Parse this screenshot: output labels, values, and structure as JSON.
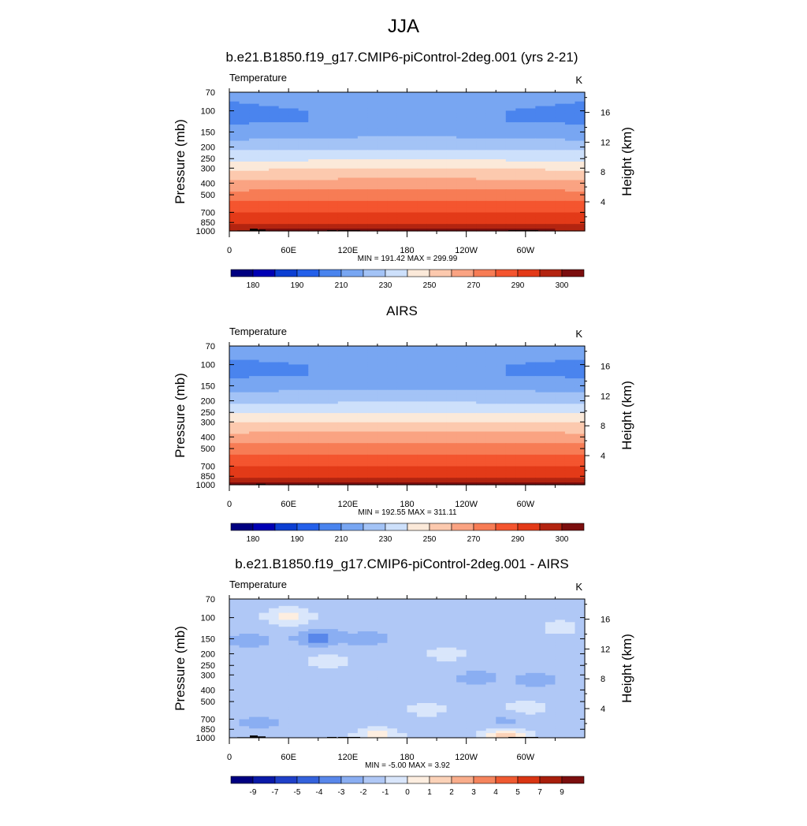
{
  "figure_title": "JJA",
  "colors": {
    "model_palette": [
      "#000080",
      "#0000b4",
      "#0c3fd2",
      "#2460ea",
      "#4a84ee",
      "#78a6f2",
      "#a3c3f6",
      "#cde0fb",
      "#fbe9d9",
      "#fcc9ae",
      "#faa382",
      "#f77c55",
      "#f4552f",
      "#e33a18",
      "#b32410",
      "#7b0e0e"
    ],
    "diff_palette": [
      "#000080",
      "#0a1aa8",
      "#1f40c8",
      "#3462dc",
      "#5987ea",
      "#8aaef2",
      "#b0c8f6",
      "#d9e6fb",
      "#fdeee0",
      "#fbd2b8",
      "#f9ad8b",
      "#f5845d",
      "#ef5a31",
      "#d93513",
      "#a81e0c",
      "#7b0e0e"
    ]
  },
  "chart_data": [
    {
      "type": "heatmap",
      "panel_title": "b.e21.B1850.f19_g17.CMIP6-piControl-2deg.001 (yrs 2-21)",
      "left_label": "Temperature",
      "units": "K",
      "ylabel": "Pressure (mb)",
      "ylabel_right": "Height (km)",
      "x_ticks": [
        "0",
        "60E",
        "120E",
        "180",
        "120W",
        "60W"
      ],
      "y_ticks": [
        "70",
        "100",
        "150",
        "200",
        "250",
        "300",
        "400",
        "500",
        "700",
        "850",
        "1000"
      ],
      "y_ticks_right": [
        "16",
        "12",
        "8",
        "4"
      ],
      "stats": "MIN = 191.42  MAX = 299.99",
      "colorbar_labels": [
        "180",
        "190",
        "210",
        "230",
        "250",
        "270",
        "290",
        "300"
      ],
      "colorbar_levels": [
        175,
        180,
        185,
        190,
        200,
        210,
        220,
        230,
        240,
        250,
        260,
        270,
        280,
        290,
        295,
        300
      ],
      "profile": [
        {
          "p": 70,
          "value": 201
        },
        {
          "p": 100,
          "value": 199
        },
        {
          "p": 125,
          "value": 199
        },
        {
          "p": 150,
          "value": 206
        },
        {
          "p": 175,
          "value": 210
        },
        {
          "p": 200,
          "value": 216
        },
        {
          "p": 250,
          "value": 227
        },
        {
          "p": 300,
          "value": 238
        },
        {
          "p": 400,
          "value": 253
        },
        {
          "p": 500,
          "value": 264
        },
        {
          "p": 600,
          "value": 272
        },
        {
          "p": 700,
          "value": 279
        },
        {
          "p": 850,
          "value": 287
        },
        {
          "p": 925,
          "value": 292
        },
        {
          "p": 1000,
          "value": 296
        }
      ]
    },
    {
      "type": "heatmap",
      "panel_title": "AIRS",
      "left_label": "Temperature",
      "units": "K",
      "ylabel": "Pressure (mb)",
      "ylabel_right": "Height (km)",
      "x_ticks": [
        "0",
        "60E",
        "120E",
        "180",
        "120W",
        "60W"
      ],
      "y_ticks": [
        "70",
        "100",
        "150",
        "200",
        "250",
        "300",
        "400",
        "500",
        "700",
        "850",
        "1000"
      ],
      "y_ticks_right": [
        "16",
        "12",
        "8",
        "4"
      ],
      "stats": "MIN = 192.55  MAX = 311.11",
      "colorbar_labels": [
        "180",
        "190",
        "210",
        "230",
        "250",
        "270",
        "290",
        "300"
      ],
      "colorbar_levels": [
        175,
        180,
        185,
        190,
        200,
        210,
        220,
        230,
        240,
        250,
        260,
        270,
        280,
        290,
        295,
        300
      ],
      "profile": [
        {
          "p": 70,
          "value": 202
        },
        {
          "p": 100,
          "value": 199
        },
        {
          "p": 125,
          "value": 199
        },
        {
          "p": 150,
          "value": 206
        },
        {
          "p": 175,
          "value": 211
        },
        {
          "p": 200,
          "value": 217
        },
        {
          "p": 250,
          "value": 228
        },
        {
          "p": 300,
          "value": 239
        },
        {
          "p": 400,
          "value": 254
        },
        {
          "p": 500,
          "value": 265
        },
        {
          "p": 600,
          "value": 273
        },
        {
          "p": 700,
          "value": 280
        },
        {
          "p": 850,
          "value": 288
        },
        {
          "p": 925,
          "value": 293
        },
        {
          "p": 1000,
          "value": 297
        }
      ]
    },
    {
      "type": "heatmap",
      "panel_title": "b.e21.B1850.f19_g17.CMIP6-piControl-2deg.001 - AIRS",
      "left_label": "Temperature",
      "units": "K",
      "ylabel": "Pressure (mb)",
      "ylabel_right": "Height (km)",
      "x_ticks": [
        "0",
        "60E",
        "120E",
        "180",
        "120W",
        "60W"
      ],
      "y_ticks": [
        "70",
        "100",
        "150",
        "200",
        "250",
        "300",
        "400",
        "500",
        "700",
        "850",
        "1000"
      ],
      "y_ticks_right": [
        "16",
        "12",
        "8",
        "4"
      ],
      "stats": "MIN =  -5.00  MAX =   3.92",
      "colorbar_labels": [
        "-9",
        "-7",
        "-5",
        "-4",
        "-3",
        "-2",
        "-1",
        "0",
        "1",
        "2",
        "3",
        "4",
        "5",
        "7",
        "9"
      ],
      "colorbar_levels": [
        -9,
        -7,
        -5,
        -4,
        -3,
        -2,
        -1,
        0,
        1,
        2,
        3,
        4,
        5,
        7,
        9
      ],
      "background_value": -1.5,
      "anomalies": [
        {
          "lon": 60,
          "p": 98,
          "value": 0.5
        },
        {
          "lon": 90,
          "p": 148,
          "value": -3.5
        },
        {
          "lon": 140,
          "p": 150,
          "value": -2.5
        },
        {
          "lon": 20,
          "p": 155,
          "value": -2.5
        },
        {
          "lon": 100,
          "p": 230,
          "value": -0.5
        },
        {
          "lon": 220,
          "p": 200,
          "value": -0.5
        },
        {
          "lon": 335,
          "p": 120,
          "value": -0.5
        },
        {
          "lon": 250,
          "p": 320,
          "value": -2.5
        },
        {
          "lon": 310,
          "p": 330,
          "value": -2.5
        },
        {
          "lon": 200,
          "p": 580,
          "value": -0.5
        },
        {
          "lon": 300,
          "p": 560,
          "value": -0.5
        },
        {
          "lon": 30,
          "p": 750,
          "value": -2.5
        },
        {
          "lon": 280,
          "p": 760,
          "value": -2.5
        },
        {
          "lon": 150,
          "p": 960,
          "value": 0.5
        },
        {
          "lon": 280,
          "p": 960,
          "value": 1.5
        }
      ]
    }
  ]
}
